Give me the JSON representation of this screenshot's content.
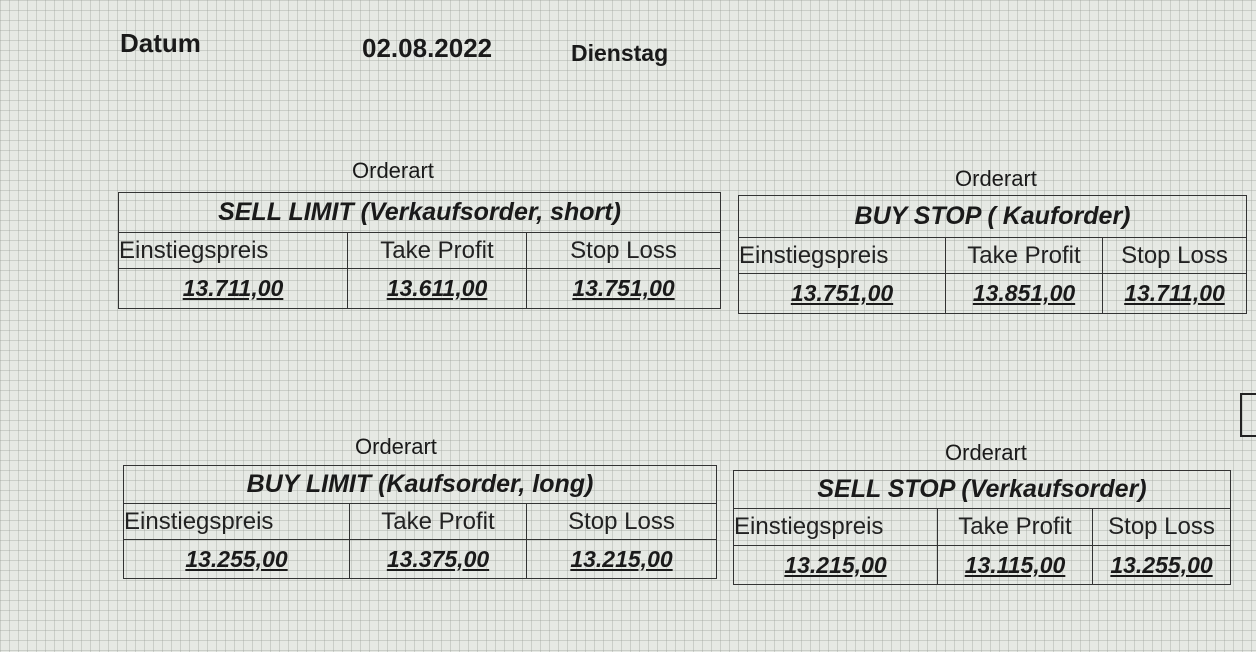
{
  "header": {
    "datum_label": "Datum",
    "date": "02.08.2022",
    "weekday": "Dienstag"
  },
  "tables": [
    {
      "caption": "Orderart",
      "title": "SELL LIMIT (Verkaufsorder, short)",
      "columns": [
        "Einstiegspreis",
        "Take Profit",
        "Stop Loss"
      ],
      "values": [
        "13.711,00",
        "13.611,00",
        "13.751,00"
      ]
    },
    {
      "caption": "Orderart",
      "title": "BUY STOP ( Kauforder)",
      "columns": [
        "Einstiegspreis",
        "Take Profit",
        "Stop Loss"
      ],
      "values": [
        "13.751,00",
        "13.851,00",
        "13.711,00"
      ]
    },
    {
      "caption": "Orderart",
      "title": "BUY LIMIT (Kaufsorder, long)",
      "columns": [
        "Einstiegspreis",
        "Take Profit",
        "Stop Loss"
      ],
      "values": [
        "13.255,00",
        "13.375,00",
        "13.215,00"
      ]
    },
    {
      "caption": "Orderart",
      "title": "SELL STOP (Verkaufsorder)",
      "columns": [
        "Einstiegspreis",
        "Take Profit",
        "Stop Loss"
      ],
      "values": [
        "13.215,00",
        "13.115,00",
        "13.255,00"
      ]
    }
  ]
}
